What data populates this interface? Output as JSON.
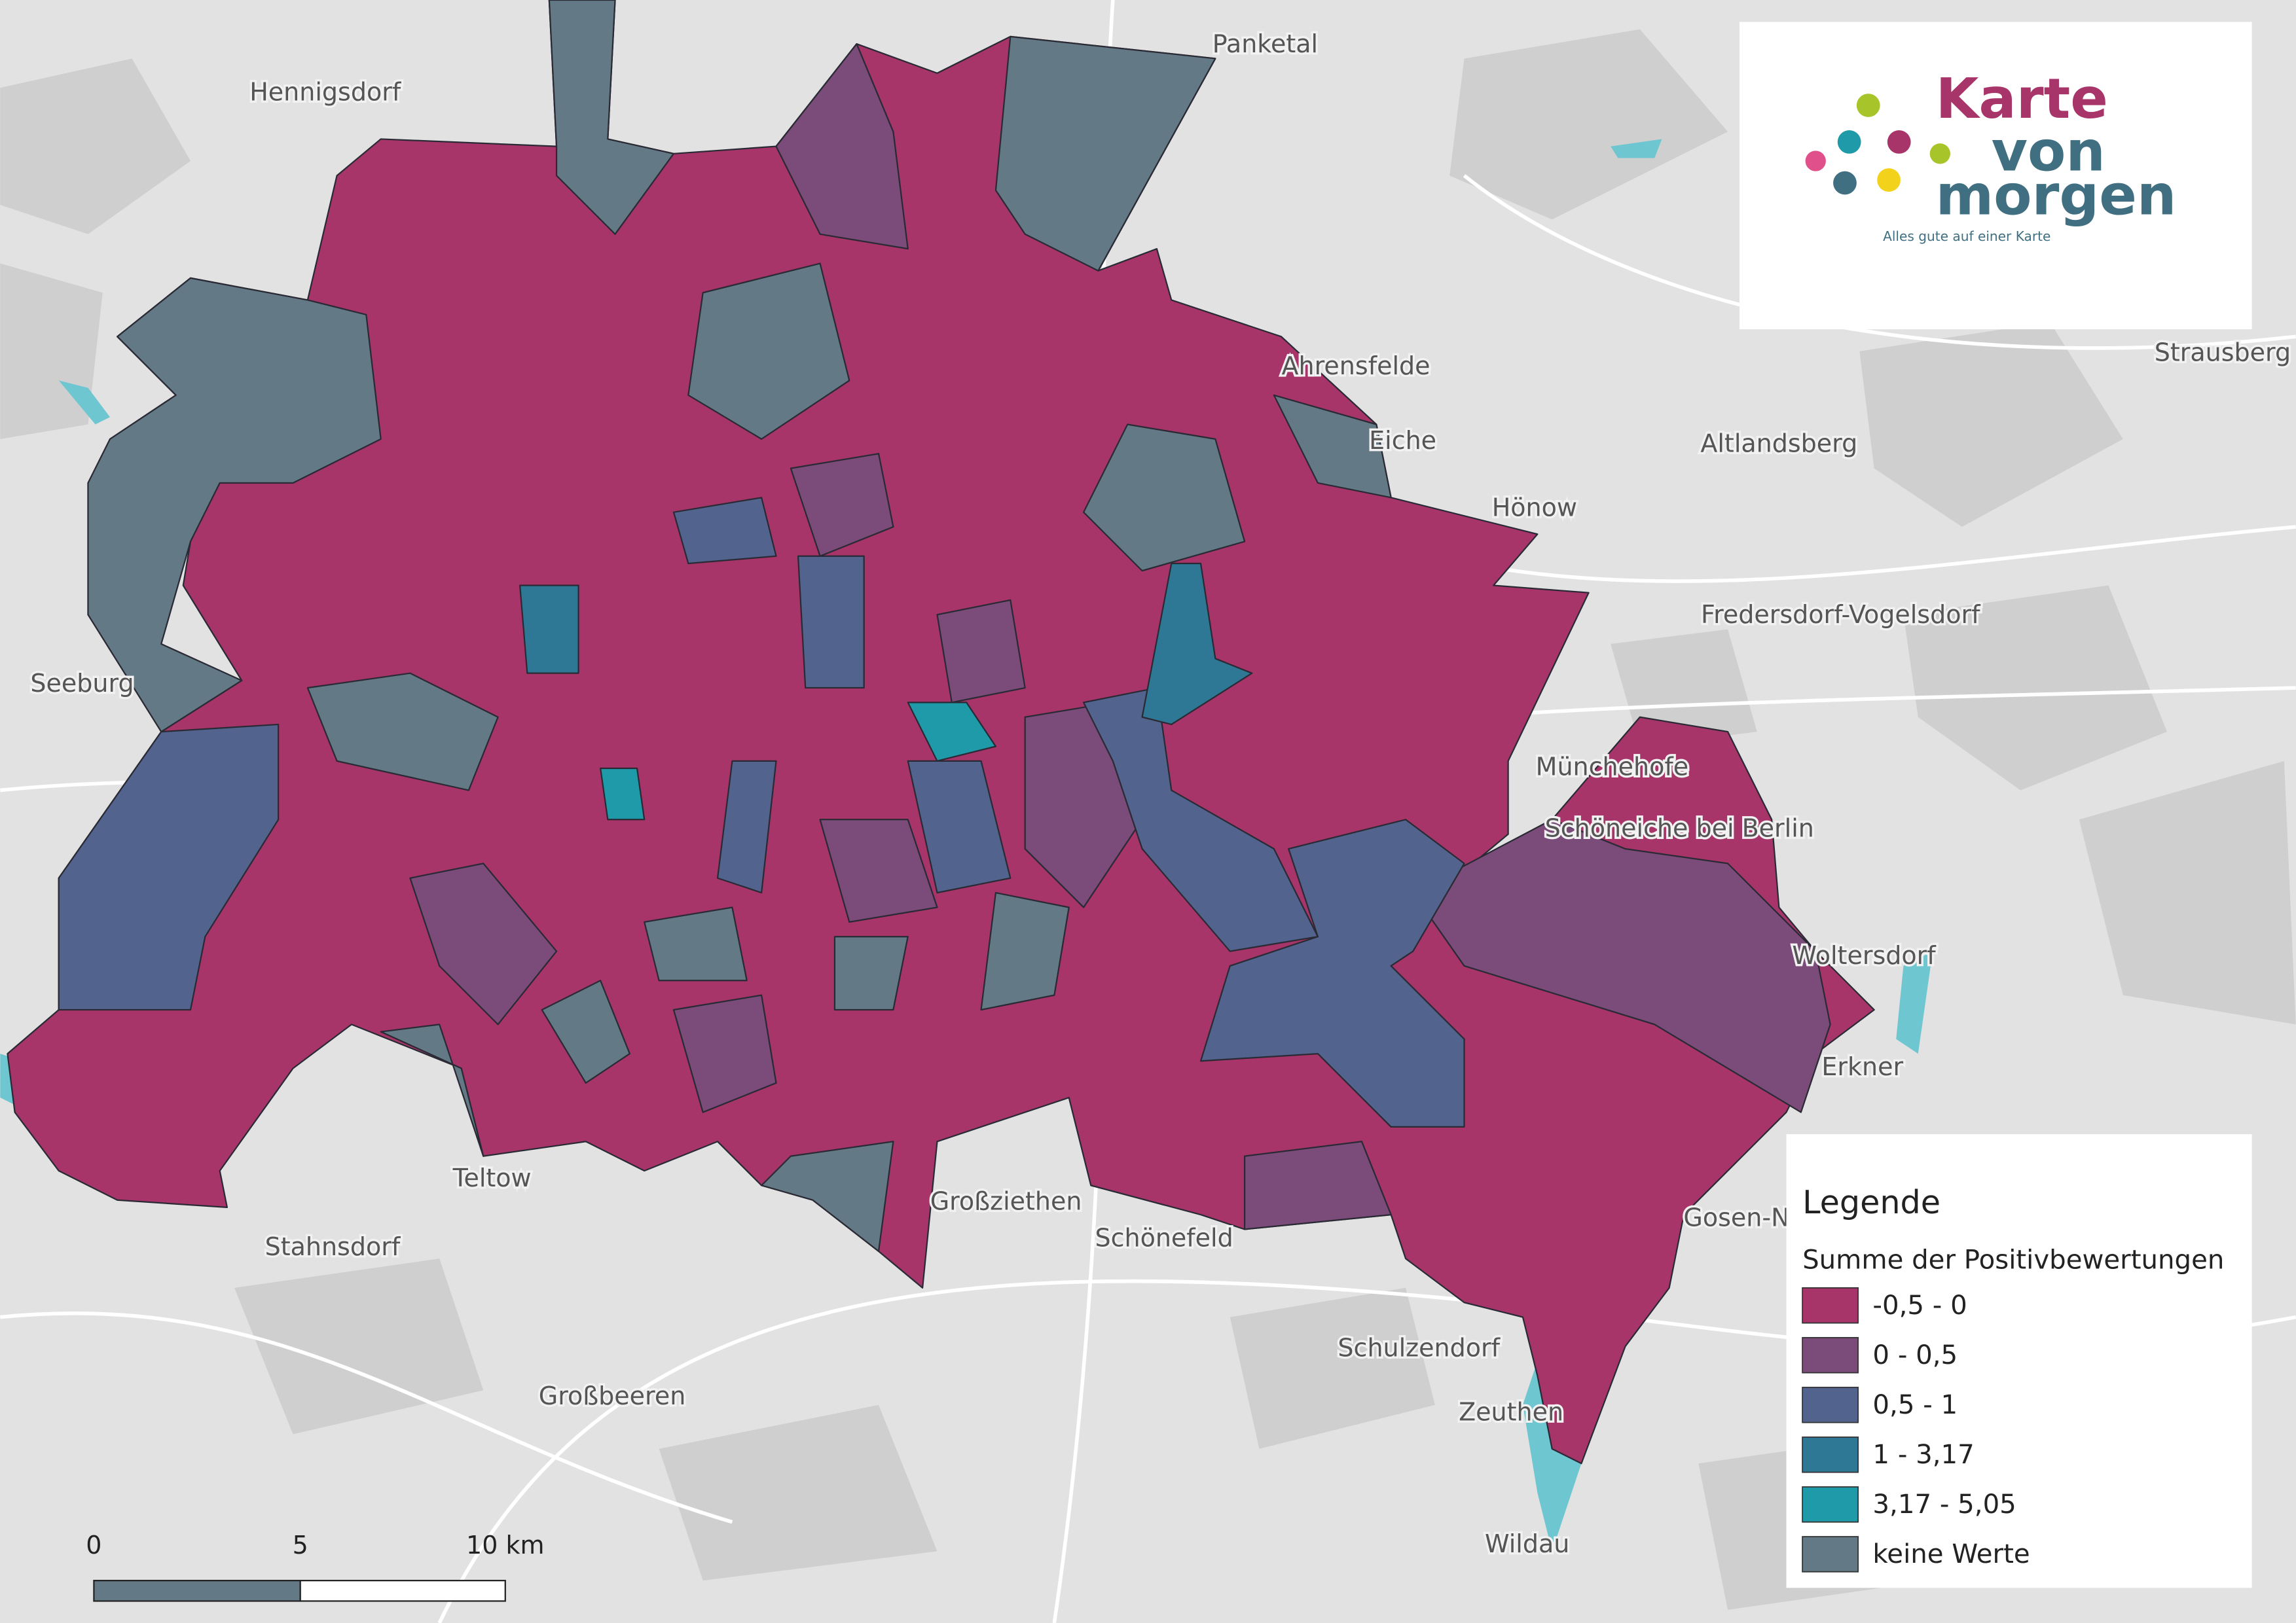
{
  "logo": {
    "line1": "Karte",
    "line2": "von",
    "line3": "morgen",
    "tagline": "Alles gute auf einer Karte"
  },
  "legend": {
    "title": "Legende",
    "subtitle": "Summe der Positivbewertungen",
    "items": [
      {
        "label": "-0,5 - 0",
        "color": "#a8356a"
      },
      {
        "label": "0 - 0,5",
        "color": "#7b4b7a"
      },
      {
        "label": "0,5 - 1",
        "color": "#52638e"
      },
      {
        "label": "1 - 3,17",
        "color": "#2e7895"
      },
      {
        "label": "3,17 - 5,05",
        "color": "#1f9aa8"
      },
      {
        "label": "keine Werte",
        "color": "#637985"
      }
    ]
  },
  "scale_bar": {
    "labels": [
      "0",
      "5",
      "10 km"
    ]
  },
  "places": [
    "Panketal",
    "Hennigsdorf",
    "Ahrensfelde",
    "Eiche",
    "Altlandsberg",
    "Strausberg",
    "Hönow",
    "Fredersdorf-Vogelsdorf",
    "Seeburg",
    "Münchehofe",
    "Schöneiche bei Berlin",
    "Woltersdorf",
    "Erkner",
    "Gosen-N",
    "Teltow",
    "Stahnsdorf",
    "Großziethen",
    "Schönefeld",
    "Schulzendorf",
    "Großbeeren",
    "Zeuthen",
    "Wildau"
  ]
}
